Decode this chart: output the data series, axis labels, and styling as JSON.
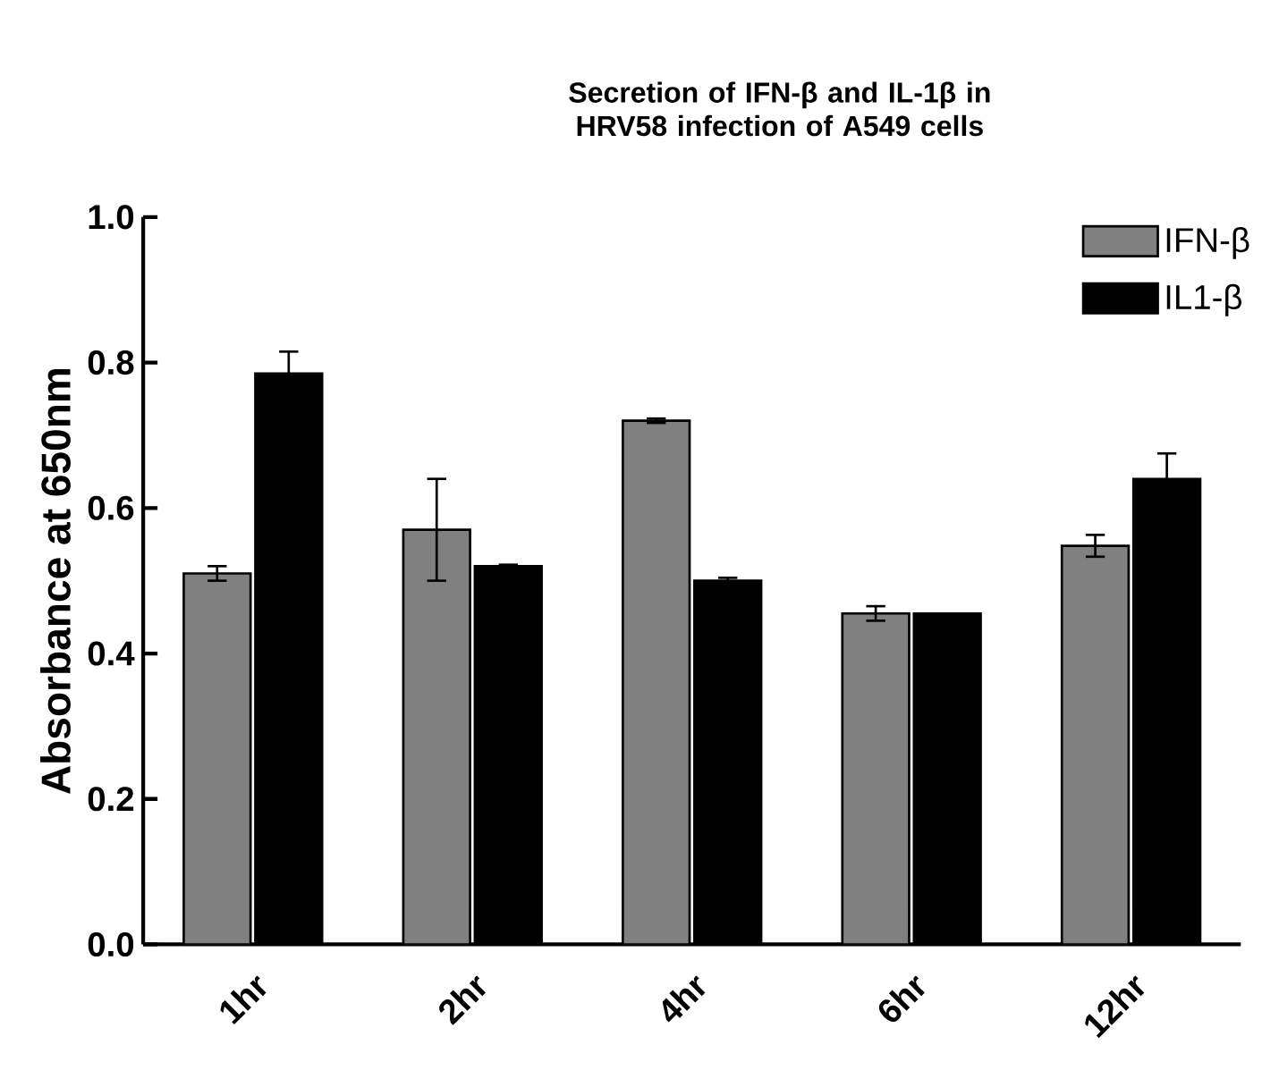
{
  "chart_data": {
    "type": "bar",
    "title": "Secretion of IFN-β and IL-1β in HRV58 infection of A549 cells",
    "ylabel": "Absorbance at 650nm",
    "categories": [
      "1hr",
      "2hr",
      "4hr",
      "6hr",
      "12hr"
    ],
    "series": [
      {
        "name": "IFN-β",
        "color": "#808080",
        "values": [
          0.51,
          0.57,
          0.72,
          0.455,
          0.548
        ],
        "errors": [
          0.01,
          0.07,
          0.003,
          0.01,
          0.015
        ]
      },
      {
        "name": "IL1-β",
        "color": "#000000",
        "values": [
          0.785,
          0.52,
          0.5,
          0.455,
          0.64
        ],
        "errors": [
          0.03,
          0.002,
          0.004,
          null,
          0.035
        ]
      }
    ],
    "ylim": [
      0,
      1.0
    ],
    "yticks": [
      {
        "value": 0,
        "label": "0.0"
      },
      0.2,
      0.4,
      0.6,
      0.8,
      {
        "value": 1.0,
        "label": "1.0"
      }
    ],
    "legend": "top right",
    "grid": false
  }
}
